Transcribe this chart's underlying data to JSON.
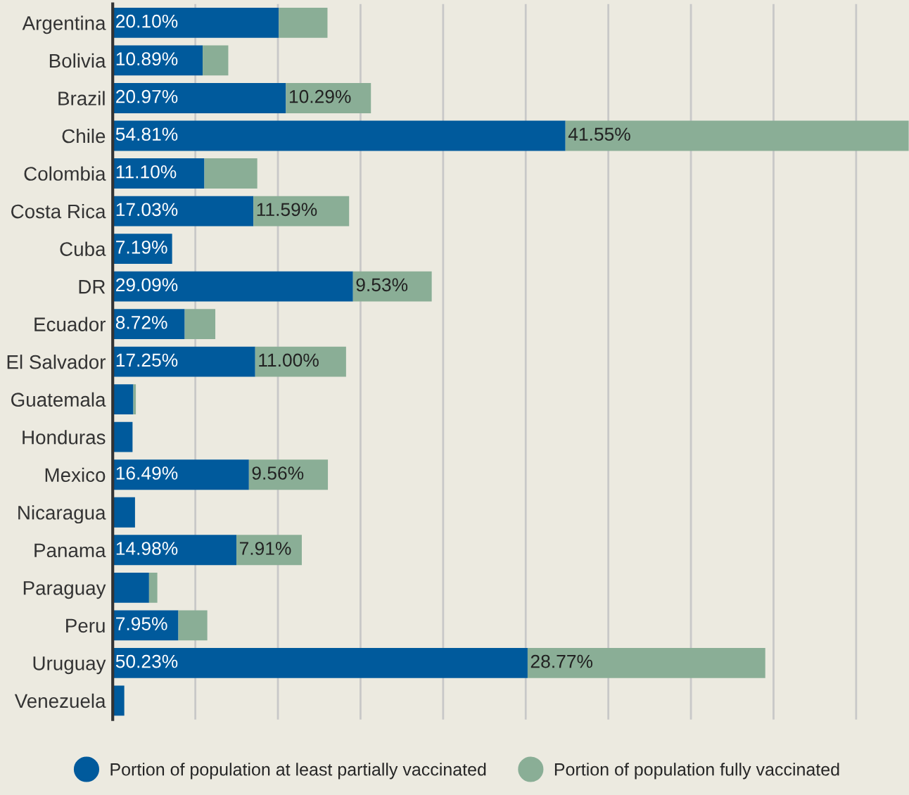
{
  "chart_data": {
    "type": "bar",
    "orientation": "horizontal",
    "stacked": true,
    "categories": [
      "Argentina",
      "Bolivia",
      "Brazil",
      "Chile",
      "Colombia",
      "Costa Rica",
      "Cuba",
      "DR",
      "Ecuador",
      "El Salvador",
      "Guatemala",
      "Honduras",
      "Mexico",
      "Nicaragua",
      "Panama",
      "Paraguay",
      "Peru",
      "Uruguay",
      "Venezuela"
    ],
    "series": [
      {
        "name": "Portion of population at least partially vaccinated",
        "color": "#005a9c",
        "values": [
          20.1,
          10.89,
          20.97,
          54.81,
          11.1,
          17.03,
          7.19,
          29.09,
          8.72,
          17.25,
          2.5,
          2.4,
          16.49,
          2.7,
          14.98,
          4.4,
          7.95,
          50.23,
          1.4
        ],
        "value_labels": [
          "20.10%",
          "10.89%",
          "20.97%",
          "54.81%",
          "11.10%",
          "17.03%",
          "7.19%",
          "29.09%",
          "8.72%",
          "17.25%",
          null,
          null,
          "16.49%",
          null,
          "14.98%",
          null,
          "7.95%",
          "50.23%",
          null
        ]
      },
      {
        "name": "Portion of population fully vaccinated",
        "color": "#8aae96",
        "values": [
          5.9,
          3.1,
          10.29,
          41.55,
          6.4,
          11.59,
          null,
          9.53,
          3.7,
          11.0,
          0.3,
          null,
          9.56,
          null,
          7.91,
          1.0,
          3.5,
          28.77,
          null
        ],
        "value_labels": [
          null,
          null,
          "10.29%",
          "41.55%",
          null,
          "11.59%",
          null,
          "9.53%",
          null,
          "11.00%",
          null,
          null,
          "9.56%",
          null,
          "7.91%",
          null,
          null,
          "28.77%",
          null
        ]
      }
    ],
    "xlim": [
      0,
      96.4
    ],
    "xticks": [
      {
        "value": 10,
        "label": null
      },
      {
        "value": 20,
        "label": null
      },
      {
        "value": 30,
        "label": null
      },
      {
        "value": 40,
        "label": null
      },
      {
        "value": 50,
        "label": null
      },
      {
        "value": 60,
        "label": null
      },
      {
        "value": 70,
        "label": null
      },
      {
        "value": 80,
        "label": null
      },
      {
        "value": 90,
        "label": null
      }
    ],
    "grid": "x",
    "tick_labels": "y",
    "legend": "bottom"
  }
}
